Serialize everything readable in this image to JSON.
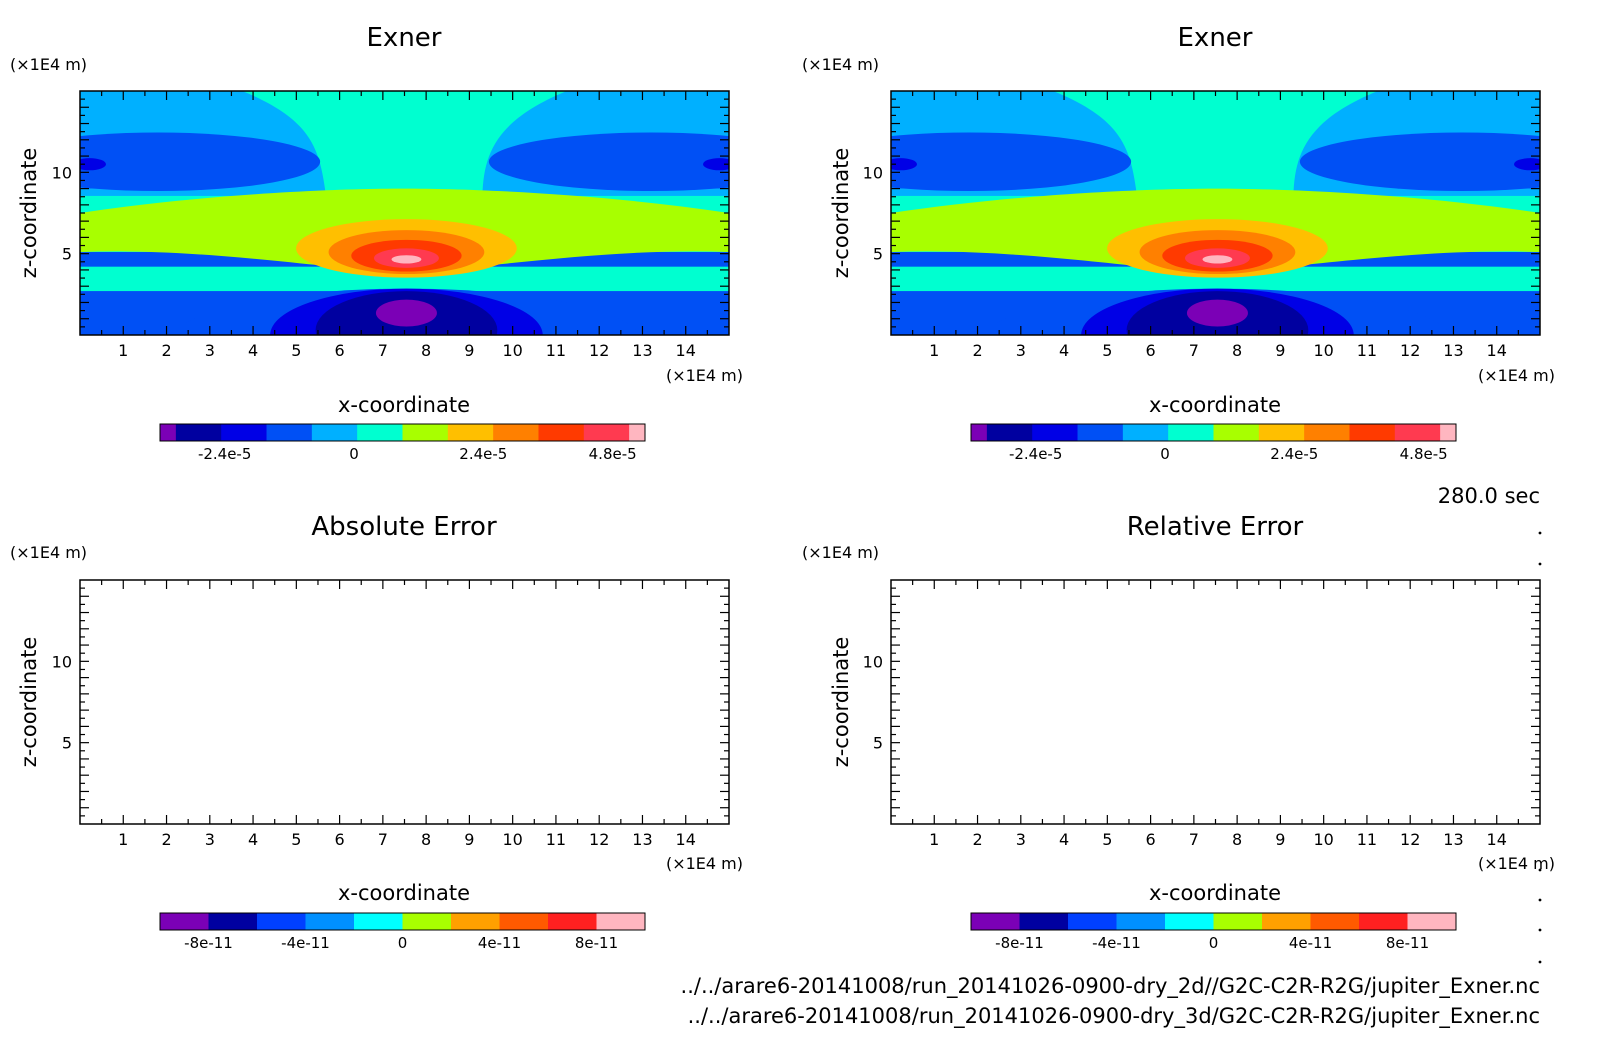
{
  "chart_data": [
    {
      "type": "heatmap",
      "title": "Exner",
      "xlabel": "x-coordinate",
      "ylabel": "z-coordinate",
      "x_unit": "(×1E4 m)",
      "y_unit": "(×1E4 m)",
      "xlim": [
        0,
        15
      ],
      "ylim": [
        0,
        15
      ],
      "x_ticks": [
        "1",
        "2",
        "3",
        "4",
        "5",
        "6",
        "7",
        "8",
        "9",
        "10",
        "11",
        "12",
        "13",
        "14"
      ],
      "y_ticks": [
        "5",
        "10"
      ],
      "field": "filled contours",
      "levels": [
        -3.6e-05,
        -3e-05,
        -2.4e-05,
        -1.8e-05,
        -1.2e-05,
        -6e-06,
        0,
        6e-06,
        1.2e-05,
        1.8e-05,
        2.4e-05,
        3e-05,
        3.6e-05,
        4.2e-05,
        4.8e-05,
        5.4e-05
      ],
      "colorbar_ticks": [
        "-2.4e-5",
        "0",
        "2.4e-5",
        "4.8e-5"
      ],
      "colorbar_tick_values": [
        -2.4e-05,
        0,
        2.4e-05,
        4.8e-05
      ],
      "colorbar_range": [
        -3.6e-05,
        5.4e-05
      ]
    },
    {
      "type": "heatmap",
      "title": "Exner",
      "xlabel": "x-coordinate",
      "ylabel": "z-coordinate",
      "x_unit": "(×1E4 m)",
      "y_unit": "(×1E4 m)",
      "xlim": [
        0,
        15
      ],
      "ylim": [
        0,
        15
      ],
      "x_ticks": [
        "1",
        "2",
        "3",
        "4",
        "5",
        "6",
        "7",
        "8",
        "9",
        "10",
        "11",
        "12",
        "13",
        "14"
      ],
      "y_ticks": [
        "5",
        "10"
      ],
      "field": "filled contours",
      "levels": [
        -3.6e-05,
        -3e-05,
        -2.4e-05,
        -1.8e-05,
        -1.2e-05,
        -6e-06,
        0,
        6e-06,
        1.2e-05,
        1.8e-05,
        2.4e-05,
        3e-05,
        3.6e-05,
        4.2e-05,
        4.8e-05,
        5.4e-05
      ],
      "colorbar_ticks": [
        "-2.4e-5",
        "0",
        "2.4e-5",
        "4.8e-5"
      ],
      "colorbar_tick_values": [
        -2.4e-05,
        0,
        2.4e-05,
        4.8e-05
      ],
      "colorbar_range": [
        -3.6e-05,
        5.4e-05
      ]
    },
    {
      "type": "heatmap",
      "title": "Absolute Error",
      "xlabel": "x-coordinate",
      "ylabel": "z-coordinate",
      "x_unit": "(×1E4 m)",
      "y_unit": "(×1E4 m)",
      "xlim": [
        0,
        15
      ],
      "ylim": [
        0,
        15
      ],
      "x_ticks": [
        "1",
        "2",
        "3",
        "4",
        "5",
        "6",
        "7",
        "8",
        "9",
        "10",
        "11",
        "12",
        "13",
        "14"
      ],
      "y_ticks": [
        "5",
        "10"
      ],
      "field": "empty",
      "colorbar_ticks": [
        "-8e-11",
        "-4e-11",
        "0",
        "4e-11",
        "8e-11"
      ],
      "colorbar_tick_values": [
        -8e-11,
        -4e-11,
        0,
        4e-11,
        8e-11
      ],
      "colorbar_range": [
        -1e-10,
        1e-10
      ]
    },
    {
      "type": "heatmap",
      "title": "Relative Error",
      "xlabel": "x-coordinate",
      "ylabel": "z-coordinate",
      "x_unit": "(×1E4 m)",
      "y_unit": "(×1E4 m)",
      "xlim": [
        0,
        15
      ],
      "ylim": [
        0,
        15
      ],
      "x_ticks": [
        "1",
        "2",
        "3",
        "4",
        "5",
        "6",
        "7",
        "8",
        "9",
        "10",
        "11",
        "12",
        "13",
        "14"
      ],
      "y_ticks": [
        "5",
        "10"
      ],
      "field": "empty",
      "colorbar_ticks": [
        "-8e-11",
        "-4e-11",
        "0",
        "4e-11",
        "8e-11"
      ],
      "colorbar_tick_values": [
        -8e-11,
        -4e-11,
        0,
        4e-11,
        8e-11
      ],
      "colorbar_range": [
        -1e-10,
        1e-10
      ]
    }
  ],
  "palettes": {
    "exner": [
      "#7b00b6",
      "#0000a0",
      "#0000e6",
      "#0050f5",
      "#00b0ff",
      "#00ffd0",
      "#a8ff00",
      "#ffbf00",
      "#ff8000",
      "#ff3a00",
      "#ff3a50",
      "#ffb6c0"
    ],
    "error": [
      "#7b00b6",
      "#0000a0",
      "#0040ff",
      "#0090ff",
      "#00ffff",
      "#a8ff00",
      "#ffa000",
      "#ff5a00",
      "#ff2020",
      "#ffb6c0"
    ]
  },
  "time_label": "280.0 sec",
  "file_paths": [
    "../../arare6-20141008/run_20141026-0900-dry_2d//G2C-C2R-R2G/jupiter_Exner.nc",
    "../../arare6-20141008/run_20141026-0900-dry_3d/G2C-C2R-R2G/jupiter_Exner.nc"
  ]
}
